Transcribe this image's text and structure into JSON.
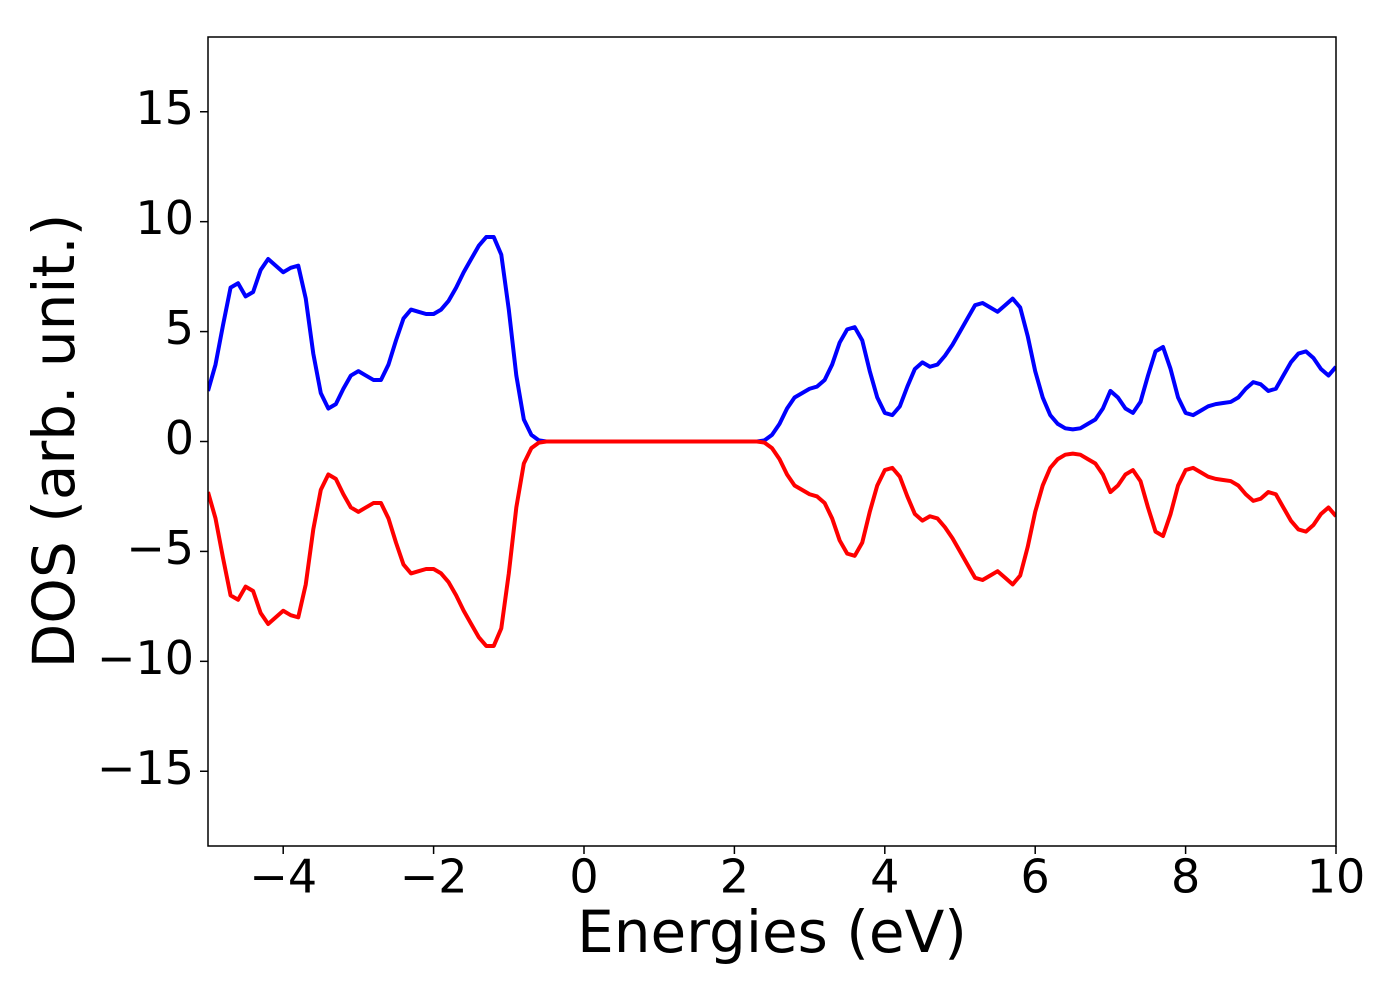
{
  "chart_data": {
    "type": "line",
    "x_label": "Energies (eV)",
    "y_label": "DOS (arb. unit.)",
    "xlim": [
      -5,
      10
    ],
    "ylim": [
      -18.4,
      18.4
    ],
    "xticks": [
      {
        "value": -4,
        "label": "−4"
      },
      {
        "value": -2,
        "label": "−2"
      },
      0,
      2,
      4,
      6,
      8,
      10
    ],
    "yticks": [
      {
        "value": -15,
        "label": "−15"
      },
      {
        "value": -10,
        "label": "−10"
      },
      {
        "value": -5,
        "label": "−5"
      },
      0,
      5,
      10,
      15
    ],
    "x": [
      -5.0,
      -4.9,
      -4.8,
      -4.7,
      -4.6,
      -4.5,
      -4.4,
      -4.3,
      -4.2,
      -4.1,
      -4.0,
      -3.9,
      -3.8,
      -3.7,
      -3.6,
      -3.5,
      -3.4,
      -3.3,
      -3.2,
      -3.1,
      -3.0,
      -2.9,
      -2.8,
      -2.7,
      -2.6,
      -2.5,
      -2.4,
      -2.3,
      -2.2,
      -2.1,
      -2.0,
      -1.9,
      -1.8,
      -1.7,
      -1.6,
      -1.5,
      -1.4,
      -1.3,
      -1.2,
      -1.1,
      -1.0,
      -0.9,
      -0.8,
      -0.7,
      -0.6,
      -0.5,
      -0.4,
      -0.3,
      -0.2,
      -0.1,
      0.0,
      0.1,
      0.2,
      0.3,
      0.4,
      0.5,
      0.6,
      0.7,
      0.8,
      0.9,
      1.0,
      1.1,
      1.2,
      1.3,
      1.4,
      1.5,
      1.6,
      1.7,
      1.8,
      1.9,
      2.0,
      2.1,
      2.2,
      2.3,
      2.4,
      2.5,
      2.6,
      2.7,
      2.8,
      2.9,
      3.0,
      3.1,
      3.2,
      3.3,
      3.4,
      3.5,
      3.6,
      3.7,
      3.8,
      3.9,
      4.0,
      4.1,
      4.2,
      4.3,
      4.4,
      4.5,
      4.6,
      4.7,
      4.8,
      4.9,
      5.0,
      5.1,
      5.2,
      5.3,
      5.4,
      5.5,
      5.6,
      5.7,
      5.8,
      5.9,
      6.0,
      6.1,
      6.2,
      6.3,
      6.4,
      6.5,
      6.6,
      6.7,
      6.8,
      6.9,
      7.0,
      7.1,
      7.2,
      7.3,
      7.4,
      7.5,
      7.6,
      7.7,
      7.8,
      7.9,
      8.0,
      8.1,
      8.2,
      8.3,
      8.4,
      8.5,
      8.6,
      8.7,
      8.8,
      8.9,
      9.0,
      9.1,
      9.2,
      9.3,
      9.4,
      9.5,
      9.6,
      9.7,
      9.8,
      9.9,
      10.0
    ],
    "series": [
      {
        "color": "#0000ff",
        "values": [
          2.3,
          3.5,
          5.3,
          7.0,
          7.2,
          6.6,
          6.8,
          7.8,
          8.3,
          8.0,
          7.7,
          7.9,
          8.0,
          6.5,
          4.0,
          2.2,
          1.5,
          1.7,
          2.4,
          3.0,
          3.2,
          3.0,
          2.8,
          2.8,
          3.5,
          4.6,
          5.6,
          6.0,
          5.9,
          5.8,
          5.8,
          6.0,
          6.4,
          7.0,
          7.7,
          8.3,
          8.9,
          9.3,
          9.3,
          8.5,
          6.0,
          3.0,
          1.0,
          0.3,
          0.05,
          0,
          0,
          0,
          0,
          0,
          0,
          0,
          0,
          0,
          0,
          0,
          0,
          0,
          0,
          0,
          0,
          0,
          0,
          0,
          0,
          0,
          0,
          0,
          0,
          0,
          0,
          0,
          0,
          0,
          0.05,
          0.3,
          0.8,
          1.5,
          2.0,
          2.2,
          2.4,
          2.5,
          2.8,
          3.5,
          4.5,
          5.1,
          5.2,
          4.6,
          3.2,
          2.0,
          1.3,
          1.2,
          1.6,
          2.5,
          3.3,
          3.6,
          3.4,
          3.5,
          3.9,
          4.4,
          5.0,
          5.6,
          6.2,
          6.3,
          6.1,
          5.9,
          6.2,
          6.5,
          6.1,
          4.8,
          3.2,
          2.0,
          1.2,
          0.8,
          0.6,
          0.55,
          0.6,
          0.8,
          1.0,
          1.5,
          2.3,
          2.0,
          1.5,
          1.3,
          1.8,
          3.0,
          4.1,
          4.3,
          3.3,
          2.0,
          1.3,
          1.2,
          1.4,
          1.6,
          1.7,
          1.75,
          1.8,
          2.0,
          2.4,
          2.7,
          2.6,
          2.3,
          2.4,
          3.0,
          3.6,
          4.0,
          4.1,
          3.8,
          3.3,
          3.0,
          3.4
        ]
      },
      {
        "color": "#ff0000",
        "values": [
          -2.3,
          -3.5,
          -5.3,
          -7.0,
          -7.2,
          -6.6,
          -6.8,
          -7.8,
          -8.3,
          -8.0,
          -7.7,
          -7.9,
          -8.0,
          -6.5,
          -4.0,
          -2.2,
          -1.5,
          -1.7,
          -2.4,
          -3.0,
          -3.2,
          -3.0,
          -2.8,
          -2.8,
          -3.5,
          -4.6,
          -5.6,
          -6.0,
          -5.9,
          -5.8,
          -5.8,
          -6.0,
          -6.4,
          -7.0,
          -7.7,
          -8.3,
          -8.9,
          -9.3,
          -9.3,
          -8.5,
          -6.0,
          -3.0,
          -1.0,
          -0.3,
          -0.05,
          0,
          0,
          0,
          0,
          0,
          0,
          0,
          0,
          0,
          0,
          0,
          0,
          0,
          0,
          0,
          0,
          0,
          0,
          0,
          0,
          0,
          0,
          0,
          0,
          0,
          0,
          0,
          0,
          0,
          -0.05,
          -0.3,
          -0.8,
          -1.5,
          -2.0,
          -2.2,
          -2.4,
          -2.5,
          -2.8,
          -3.5,
          -4.5,
          -5.1,
          -5.2,
          -4.6,
          -3.2,
          -2.0,
          -1.3,
          -1.2,
          -1.6,
          -2.5,
          -3.3,
          -3.6,
          -3.4,
          -3.5,
          -3.9,
          -4.4,
          -5.0,
          -5.6,
          -6.2,
          -6.3,
          -6.1,
          -5.9,
          -6.2,
          -6.5,
          -6.1,
          -4.8,
          -3.2,
          -2.0,
          -1.2,
          -0.8,
          -0.6,
          -0.55,
          -0.6,
          -0.8,
          -1.0,
          -1.5,
          -2.3,
          -2.0,
          -1.5,
          -1.3,
          -1.8,
          -3.0,
          -4.1,
          -4.3,
          -3.3,
          -2.0,
          -1.3,
          -1.2,
          -1.4,
          -1.6,
          -1.7,
          -1.75,
          -1.8,
          -2.0,
          -2.4,
          -2.7,
          -2.6,
          -2.3,
          -2.4,
          -3.0,
          -3.6,
          -4.0,
          -4.1,
          -3.8,
          -3.3,
          -3.0,
          -3.4
        ]
      }
    ]
  }
}
